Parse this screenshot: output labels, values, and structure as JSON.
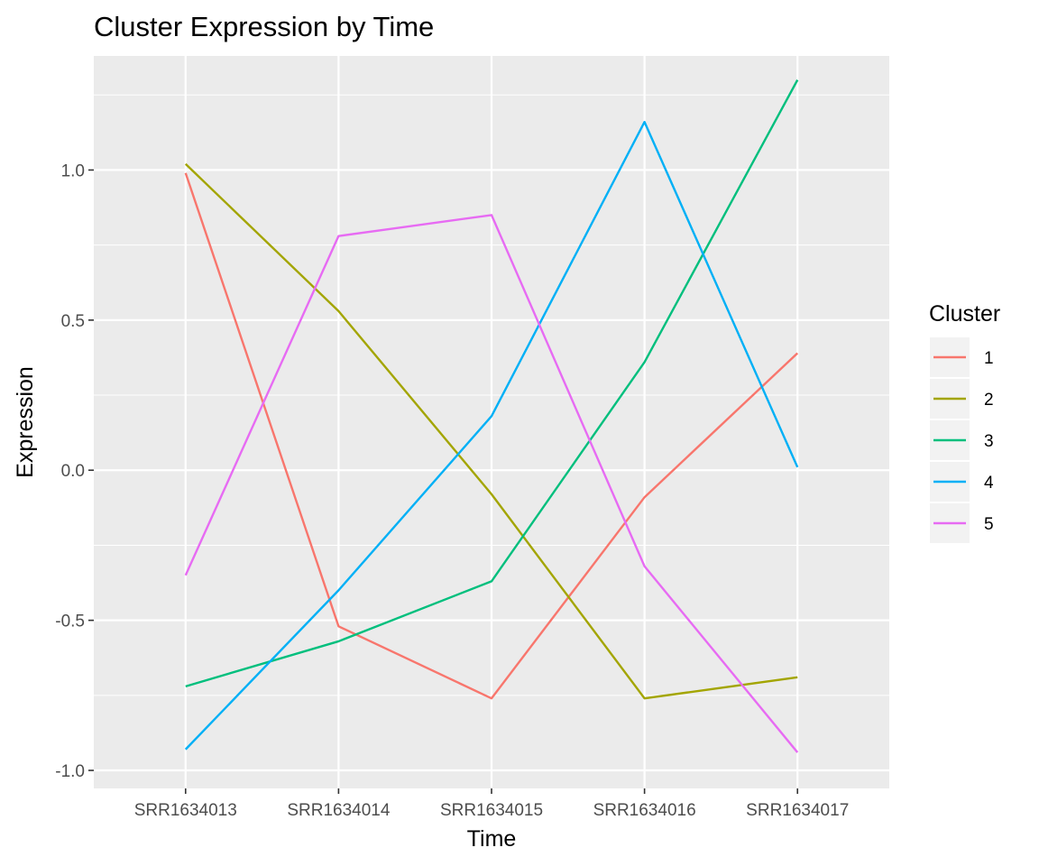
{
  "chart_data": {
    "type": "line",
    "title": "Cluster Expression by Time",
    "xlabel": "Time",
    "ylabel": "Expression",
    "categories": [
      "SRR1634013",
      "SRR1634014",
      "SRR1634015",
      "SRR1634016",
      "SRR1634017"
    ],
    "ylim": [
      -1.06,
      1.38
    ],
    "yticks": [
      -1.0,
      -0.5,
      0.0,
      0.5,
      1.0
    ],
    "ytick_labels": [
      "-1.0",
      "-0.5",
      "0.0",
      "0.5",
      "1.0"
    ],
    "grid": true,
    "legend": {
      "title": "Cluster",
      "placement": "right"
    },
    "series": [
      {
        "name": "1",
        "color": "#F8766D",
        "values": [
          0.99,
          -0.52,
          -0.76,
          -0.09,
          0.39
        ]
      },
      {
        "name": "2",
        "color": "#A3A500",
        "values": [
          1.02,
          0.53,
          -0.08,
          -0.76,
          -0.69
        ]
      },
      {
        "name": "3",
        "color": "#00BF7D",
        "values": [
          -0.72,
          -0.57,
          -0.37,
          0.36,
          1.3
        ]
      },
      {
        "name": "4",
        "color": "#00B0F6",
        "values": [
          -0.93,
          -0.4,
          0.18,
          1.16,
          0.01
        ]
      },
      {
        "name": "5",
        "color": "#E76BF3",
        "values": [
          -0.35,
          0.78,
          0.85,
          -0.32,
          -0.94
        ]
      }
    ]
  }
}
